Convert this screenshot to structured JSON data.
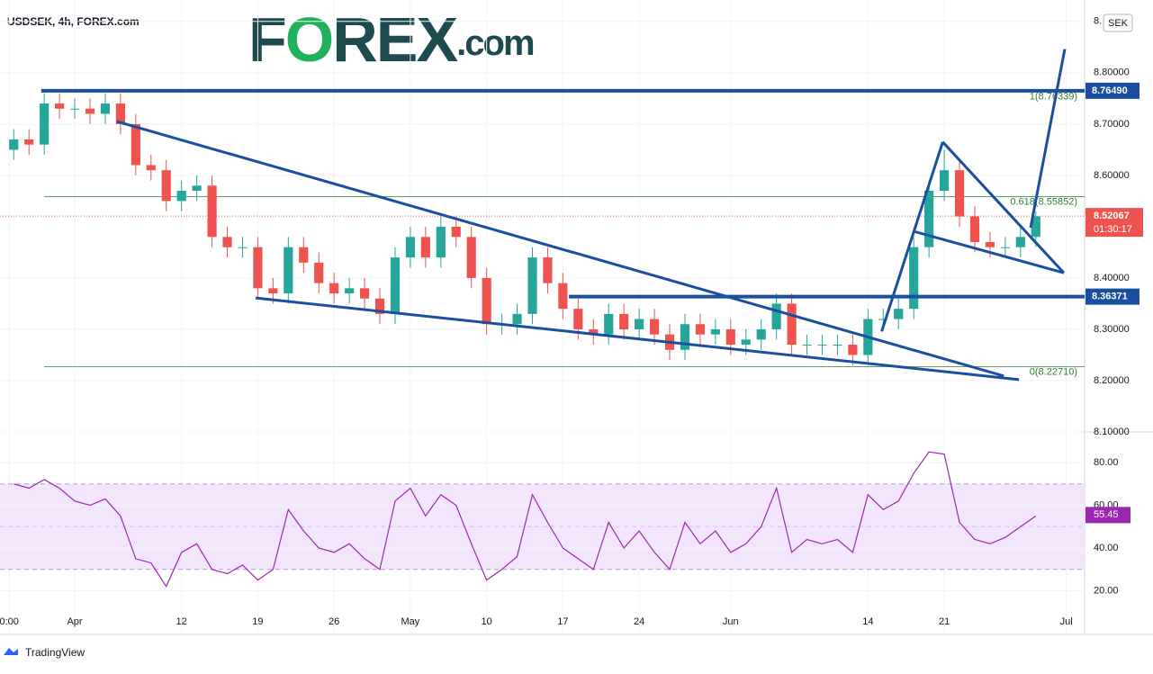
{
  "header": {
    "title": "USDSEK, 4h, FOREX.com",
    "logo": [
      "F",
      "O",
      "REX",
      ".com"
    ],
    "currency": "SEK",
    "footer": "TradingView"
  },
  "chart_data": [
    {
      "type": "candlestick",
      "xlim": [
        -4.9,
        66.2
      ],
      "ylim": [
        8.1,
        8.94
      ],
      "xticks": [
        {
          "value": -4.3,
          "label": "0:00"
        },
        {
          "value": 0,
          "label": "Apr"
        },
        {
          "value": 7,
          "label": "12"
        },
        {
          "value": 12,
          "label": "19"
        },
        {
          "value": 17,
          "label": "26"
        },
        {
          "value": 22,
          "label": "May"
        },
        {
          "value": 27,
          "label": "10"
        },
        {
          "value": 32,
          "label": "17"
        },
        {
          "value": 37,
          "label": "24"
        },
        {
          "value": 43,
          "label": "Jun"
        },
        {
          "value": 52,
          "label": "14"
        },
        {
          "value": 57,
          "label": "21"
        },
        {
          "value": 65,
          "label": "Jul"
        }
      ],
      "yticks": [
        {
          "value": 8.1,
          "label": "8.10000"
        },
        {
          "value": 8.2,
          "label": "8.20000"
        },
        {
          "value": 8.3,
          "label": "8.30000"
        },
        {
          "value": 8.4,
          "label": "8.40000"
        },
        {
          "value": 8.6,
          "label": "8.60000"
        },
        {
          "value": 8.7,
          "label": "8.70000"
        },
        {
          "value": 8.8,
          "label": "8.80000"
        },
        {
          "value": 8.9,
          "label": "8."
        }
      ],
      "up_color": "#26a69a",
      "down_color": "#ef5350",
      "x": [
        -4,
        -3,
        -2,
        -1,
        0,
        1,
        2,
        3,
        4,
        5,
        6,
        7,
        8,
        9,
        10,
        11,
        12,
        13,
        14,
        15,
        16,
        17,
        18,
        19,
        20,
        21,
        22,
        23,
        24,
        25,
        26,
        27,
        28,
        29,
        30,
        31,
        32,
        33,
        34,
        35,
        36,
        37,
        38,
        39,
        40,
        41,
        42,
        43,
        44,
        45,
        46,
        47,
        48,
        49,
        50,
        51,
        52,
        53,
        54,
        55,
        56,
        57,
        58,
        59,
        60,
        61,
        62,
        63
      ],
      "open": [
        8.65,
        8.67,
        8.66,
        8.74,
        8.73,
        8.73,
        8.72,
        8.74,
        8.7,
        8.62,
        8.61,
        8.55,
        8.57,
        8.58,
        8.48,
        8.46,
        8.46,
        8.38,
        8.37,
        8.46,
        8.43,
        8.39,
        8.37,
        8.38,
        8.36,
        8.33,
        8.44,
        8.48,
        8.44,
        8.5,
        8.48,
        8.4,
        8.31,
        8.31,
        8.33,
        8.44,
        8.39,
        8.34,
        8.3,
        8.29,
        8.33,
        8.3,
        8.32,
        8.29,
        8.26,
        8.31,
        8.29,
        8.3,
        8.27,
        8.28,
        8.3,
        8.35,
        8.27,
        8.27,
        8.27,
        8.27,
        8.25,
        8.32,
        8.32,
        8.34,
        8.46,
        8.57,
        8.61,
        8.52,
        8.47,
        8.46,
        8.46,
        8.48
      ],
      "high": [
        8.69,
        8.69,
        8.76,
        8.76,
        8.75,
        8.75,
        8.76,
        8.76,
        8.72,
        8.64,
        8.63,
        8.59,
        8.6,
        8.6,
        8.5,
        8.48,
        8.48,
        8.4,
        8.48,
        8.48,
        8.45,
        8.41,
        8.4,
        8.4,
        8.38,
        8.46,
        8.5,
        8.5,
        8.52,
        8.52,
        8.5,
        8.42,
        8.33,
        8.35,
        8.46,
        8.46,
        8.41,
        8.36,
        8.32,
        8.35,
        8.35,
        8.34,
        8.34,
        8.31,
        8.33,
        8.33,
        8.32,
        8.32,
        8.3,
        8.32,
        8.37,
        8.37,
        8.29,
        8.29,
        8.29,
        8.29,
        8.34,
        8.34,
        8.36,
        8.48,
        8.59,
        8.65,
        8.63,
        8.54,
        8.49,
        8.48,
        8.5,
        8.53
      ],
      "low": [
        8.63,
        8.64,
        8.64,
        8.71,
        8.71,
        8.7,
        8.7,
        8.68,
        8.6,
        8.59,
        8.53,
        8.53,
        8.55,
        8.46,
        8.44,
        8.44,
        8.36,
        8.35,
        8.35,
        8.41,
        8.37,
        8.35,
        8.35,
        8.34,
        8.31,
        8.31,
        8.42,
        8.42,
        8.42,
        8.46,
        8.38,
        8.29,
        8.29,
        8.29,
        8.31,
        8.37,
        8.32,
        8.28,
        8.27,
        8.27,
        8.28,
        8.28,
        8.27,
        8.24,
        8.24,
        8.27,
        8.27,
        8.25,
        8.25,
        8.26,
        8.28,
        8.25,
        8.25,
        8.25,
        8.25,
        8.23,
        8.23,
        8.3,
        8.3,
        8.32,
        8.44,
        8.55,
        8.5,
        8.45,
        8.44,
        8.44,
        8.44,
        8.46
      ],
      "close": [
        8.67,
        8.66,
        8.74,
        8.73,
        8.73,
        8.72,
        8.74,
        8.7,
        8.62,
        8.61,
        8.55,
        8.57,
        8.58,
        8.48,
        8.46,
        8.46,
        8.38,
        8.37,
        8.46,
        8.43,
        8.39,
        8.37,
        8.38,
        8.36,
        8.33,
        8.44,
        8.48,
        8.44,
        8.5,
        8.48,
        8.4,
        8.31,
        8.31,
        8.33,
        8.44,
        8.39,
        8.34,
        8.3,
        8.29,
        8.33,
        8.3,
        8.32,
        8.29,
        8.26,
        8.31,
        8.29,
        8.3,
        8.27,
        8.28,
        8.3,
        8.35,
        8.27,
        8.27,
        8.27,
        8.27,
        8.25,
        8.32,
        8.32,
        8.34,
        8.46,
        8.57,
        8.61,
        8.52,
        8.47,
        8.46,
        8.46,
        8.48,
        8.52
      ],
      "levels": [
        {
          "value": 8.7649,
          "label": "8.76490",
          "from": -2.2,
          "color": "#1a4fa0"
        },
        {
          "value": 8.36371,
          "label": "8.36371",
          "from": 32.4,
          "color": "#1a4fa0"
        }
      ],
      "fib": [
        {
          "value": 8.76339,
          "label": "1(8.76339)"
        },
        {
          "value": 8.55852,
          "label": "0.618(8.55852)"
        },
        {
          "value": 8.2271,
          "label": "0(8.22710)"
        }
      ],
      "fib_from": -2.0,
      "fib_color": "#2e7d32",
      "current": {
        "value": 8.52067,
        "label": "8.52067",
        "countdown": "01:30:17",
        "color": "#ef5350"
      },
      "trendlines": [
        [
          2.77,
          8.705,
          60.9,
          8.209
        ],
        [
          11.86,
          8.361,
          61.9,
          8.202
        ],
        [
          52.9,
          8.296,
          56.9,
          8.665
        ],
        [
          56.9,
          8.665,
          64.84,
          8.41
        ],
        [
          55.1,
          8.49,
          64.84,
          8.41
        ],
        [
          62.66,
          8.498,
          64.9,
          8.846
        ]
      ],
      "trend_color": "#1a4fa0"
    },
    {
      "type": "line",
      "xlim": [
        -4.9,
        66.2
      ],
      "ylim": [
        0,
        93.5
      ],
      "yticks": [
        {
          "value": 20,
          "label": "20.00"
        },
        {
          "value": 40,
          "label": "40.00"
        },
        {
          "value": 60,
          "label": "60.00"
        },
        {
          "value": 80,
          "label": "80.00"
        }
      ],
      "band": [
        30,
        70
      ],
      "midline": 50,
      "color": "#9c27b0",
      "x": [
        -4,
        -3,
        -2,
        -1,
        0,
        1,
        2,
        3,
        4,
        5,
        6,
        7,
        8,
        9,
        10,
        11,
        12,
        13,
        14,
        15,
        16,
        17,
        18,
        19,
        20,
        21,
        22,
        23,
        24,
        25,
        26,
        27,
        28,
        29,
        30,
        31,
        32,
        33,
        34,
        35,
        36,
        37,
        38,
        39,
        40,
        41,
        42,
        43,
        44,
        45,
        46,
        47,
        48,
        49,
        50,
        51,
        52,
        53,
        54,
        55,
        56,
        57,
        58,
        59,
        60,
        61,
        62,
        63
      ],
      "values": [
        70,
        68,
        72,
        68,
        62,
        60,
        63,
        55,
        35,
        33,
        22,
        38,
        42,
        30,
        28,
        32,
        25,
        30,
        58,
        48,
        40,
        38,
        42,
        35,
        30,
        62,
        68,
        55,
        65,
        60,
        42,
        25,
        30,
        36,
        65,
        52,
        40,
        35,
        30,
        52,
        40,
        48,
        38,
        30,
        52,
        42,
        48,
        38,
        42,
        50,
        68,
        38,
        44,
        42,
        44,
        38,
        65,
        58,
        62,
        75,
        85,
        84,
        52,
        44,
        42,
        45,
        50,
        55
      ],
      "last": {
        "value": 55.45,
        "label": "55.45"
      }
    }
  ]
}
